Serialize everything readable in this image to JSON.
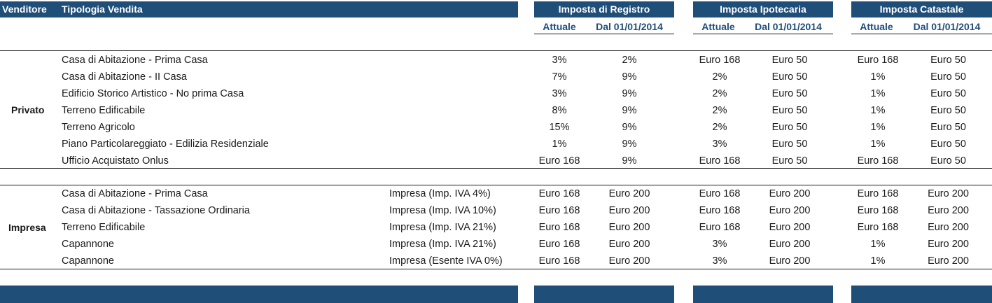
{
  "header": {
    "venditore": "Venditore",
    "tipologia": "Tipologia Vendita",
    "registro": "Imposta di Registro",
    "ipotecaria": "Imposta Ipotecaria",
    "catastale": "Imposta Catastale"
  },
  "subheaders": {
    "registro": {
      "attuale": "Attuale",
      "dal": "Dal 01/01/2014"
    },
    "ipotecaria": {
      "attuale": "Attuale",
      "dal": "Dal 01/01/2014"
    },
    "catastale": {
      "attuale": "Attuale",
      "dal": "Dal 01/01/2014"
    }
  },
  "privato": {
    "label": "Privato",
    "rows": [
      {
        "tipologia": "Casa di Abitazione - Prima Casa",
        "note": "",
        "reg_att": "3%",
        "reg_dal": "2%",
        "ipo_att": "Euro 168",
        "ipo_dal": "Euro 50",
        "cat_att": "Euro 168",
        "cat_dal": "Euro 50"
      },
      {
        "tipologia": "Casa di Abitazione - II Casa",
        "note": "",
        "reg_att": "7%",
        "reg_dal": "9%",
        "ipo_att": "2%",
        "ipo_dal": "Euro 50",
        "cat_att": "1%",
        "cat_dal": "Euro 50"
      },
      {
        "tipologia": "Edificio Storico Artistico - No prima Casa",
        "note": "",
        "reg_att": "3%",
        "reg_dal": "9%",
        "ipo_att": "2%",
        "ipo_dal": "Euro 50",
        "cat_att": "1%",
        "cat_dal": "Euro 50"
      },
      {
        "tipologia": "Terreno Edificabile",
        "note": "",
        "reg_att": "8%",
        "reg_dal": "9%",
        "ipo_att": "2%",
        "ipo_dal": "Euro 50",
        "cat_att": "1%",
        "cat_dal": "Euro 50"
      },
      {
        "tipologia": "Terreno Agricolo",
        "note": "",
        "reg_att": "15%",
        "reg_dal": "9%",
        "ipo_att": "2%",
        "ipo_dal": "Euro 50",
        "cat_att": "1%",
        "cat_dal": "Euro 50"
      },
      {
        "tipologia": "Piano Particolareggiato - Edilizia Residenziale",
        "note": "",
        "reg_att": "1%",
        "reg_dal": "9%",
        "ipo_att": "3%",
        "ipo_dal": "Euro 50",
        "cat_att": "1%",
        "cat_dal": "Euro 50"
      },
      {
        "tipologia": "Ufficio Acquistato Onlus",
        "note": "",
        "reg_att": "Euro 168",
        "reg_dal": "9%",
        "ipo_att": "Euro 168",
        "ipo_dal": "Euro 50",
        "cat_att": "Euro 168",
        "cat_dal": "Euro 50"
      }
    ]
  },
  "impresa": {
    "label": "Impresa",
    "rows": [
      {
        "tipologia": "Casa di Abitazione - Prima Casa",
        "note": "Impresa (Imp. IVA 4%)",
        "reg_att": "Euro 168",
        "reg_dal": "Euro 200",
        "ipo_att": "Euro 168",
        "ipo_dal": "Euro 200",
        "cat_att": "Euro 168",
        "cat_dal": "Euro 200"
      },
      {
        "tipologia": "Casa di Abitazione - Tassazione Ordinaria",
        "note": "Impresa (Imp. IVA 10%)",
        "reg_att": "Euro 168",
        "reg_dal": "Euro 200",
        "ipo_att": "Euro 168",
        "ipo_dal": "Euro 200",
        "cat_att": "Euro 168",
        "cat_dal": "Euro 200"
      },
      {
        "tipologia": "Terreno Edificabile",
        "note": "Impresa (Imp. IVA 21%)",
        "reg_att": "Euro 168",
        "reg_dal": "Euro 200",
        "ipo_att": "Euro 168",
        "ipo_dal": "Euro 200",
        "cat_att": "Euro 168",
        "cat_dal": "Euro 200"
      },
      {
        "tipologia": "Capannone",
        "note": "Impresa (Imp. IVA 21%)",
        "reg_att": "Euro 168",
        "reg_dal": "Euro 200",
        "ipo_att": "3%",
        "ipo_dal": "Euro 200",
        "cat_att": "1%",
        "cat_dal": "Euro 200"
      },
      {
        "tipologia": "Capannone",
        "note": "Impresa (Esente IVA 0%)",
        "reg_att": "Euro 168",
        "reg_dal": "Euro 200",
        "ipo_att": "3%",
        "ipo_dal": "Euro 200",
        "cat_att": "1%",
        "cat_dal": "Euro 200"
      }
    ]
  },
  "colors": {
    "header_bar": "#1f4e79",
    "subheader_text": "#1f4e79"
  }
}
